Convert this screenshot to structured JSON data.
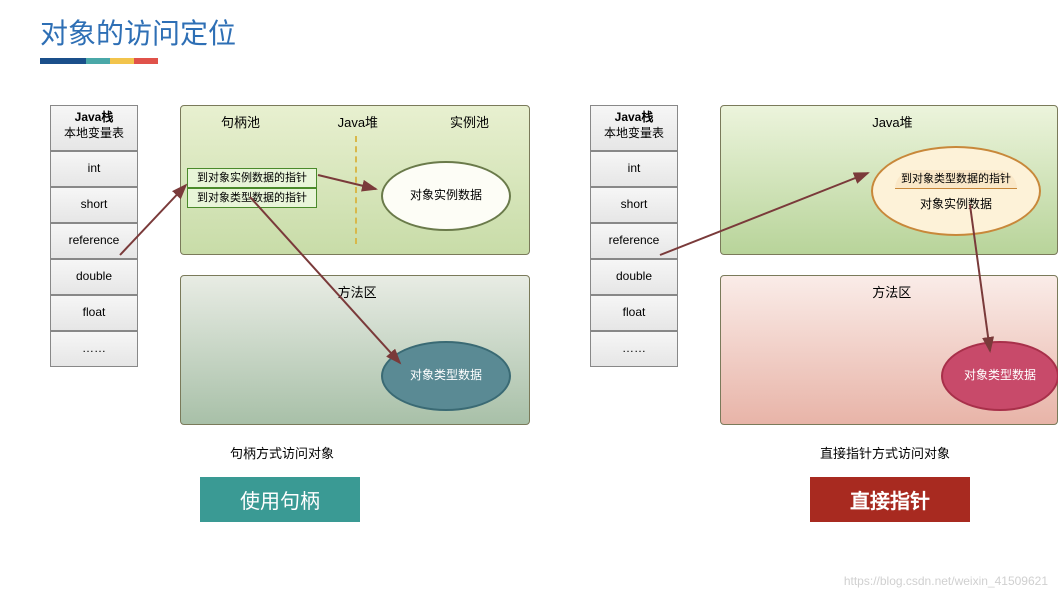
{
  "title": {
    "text": "对象的访问定位",
    "color": "#2e6fb5",
    "fontsize": 28
  },
  "accent_bar": {
    "segments": [
      {
        "color": "#1a4f8a",
        "width": 46
      },
      {
        "color": "#4aa8a8",
        "width": 24
      },
      {
        "color": "#f2c44c",
        "width": 24
      },
      {
        "color": "#e0524a",
        "width": 24
      }
    ]
  },
  "stack": {
    "header_line1": "Java栈",
    "header_line2": "本地变量表",
    "items": [
      "int",
      "short",
      "reference",
      "double",
      "float",
      "……"
    ]
  },
  "left_diagram": {
    "heap": {
      "title": "Java堆",
      "bg_gradient": [
        "#e8f0d0",
        "#c8dca8"
      ],
      "pool_left_label": "句柄池",
      "pool_right_label": "实例池",
      "divider_color": "#d8b84a",
      "handle_rows": [
        "到对象实例数据的指针",
        "到对象类型数据的指针"
      ],
      "instance_ellipse": {
        "label": "对象实例数据",
        "fill": "#fdfdf6",
        "border": "#6a7a4a"
      }
    },
    "method_area": {
      "title": "方法区",
      "bg_gradient": [
        "#e8ece4",
        "#a8c0a8"
      ],
      "type_ellipse": {
        "label": "对象类型数据",
        "fill": "#5a8a94",
        "border": "#3a6a74",
        "text_color": "#ffffff"
      }
    },
    "caption": "句柄方式访问对象",
    "badge": {
      "text": "使用句柄",
      "bg": "#3a9a94"
    },
    "arrow_color": "#7a3a3a"
  },
  "right_diagram": {
    "heap": {
      "title": "Java堆",
      "bg_gradient": [
        "#ecf4dc",
        "#b8d49a"
      ],
      "instance_ellipse": {
        "label_top": "到对象类型数据的指针",
        "label_bottom": "对象实例数据",
        "fill": "#fdf2d8",
        "border": "#c8883a",
        "top_row_bg": "#fae8c8"
      }
    },
    "method_area": {
      "title": "方法区",
      "bg_gradient": [
        "#faece8",
        "#e8b4a8"
      ],
      "type_ellipse": {
        "label": "对象类型数据",
        "fill": "#c84a6a",
        "border": "#a8304a",
        "text_color": "#ffffff"
      }
    },
    "caption": "直接指针方式访问对象",
    "badge": {
      "text": "直接指针",
      "bg": "#a82a20"
    },
    "arrow_color": "#7a3a3a"
  },
  "watermark": "https://blog.csdn.net/weixin_41509621"
}
